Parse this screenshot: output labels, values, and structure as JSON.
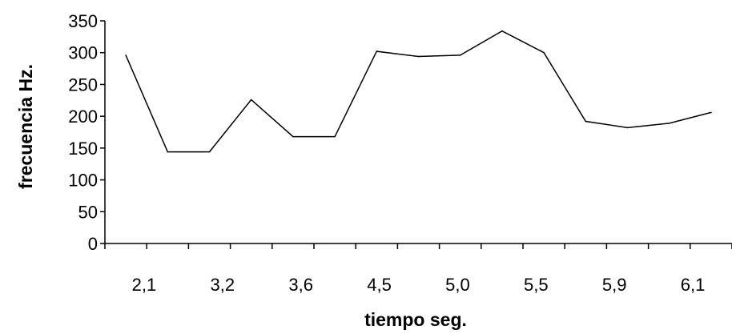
{
  "chart_data": {
    "type": "line",
    "x_tick_labels": [
      "2,1",
      "3,2",
      "3,6",
      "4,5",
      "5,0",
      "5,5",
      "5,9",
      "6,1"
    ],
    "y_tick_labels": [
      "0",
      "50",
      "100",
      "150",
      "200",
      "250",
      "300",
      "350"
    ],
    "xlabel": "tiempo seg.",
    "ylabel": "frecuencia Hz.",
    "ylim": [
      0,
      350
    ],
    "grid": false,
    "legend": "none",
    "series": [
      {
        "values": [
          296,
          144,
          144,
          226,
          168,
          168,
          302,
          294,
          296,
          334,
          300,
          192,
          182,
          189,
          206
        ]
      }
    ],
    "line_color": "#000000"
  }
}
